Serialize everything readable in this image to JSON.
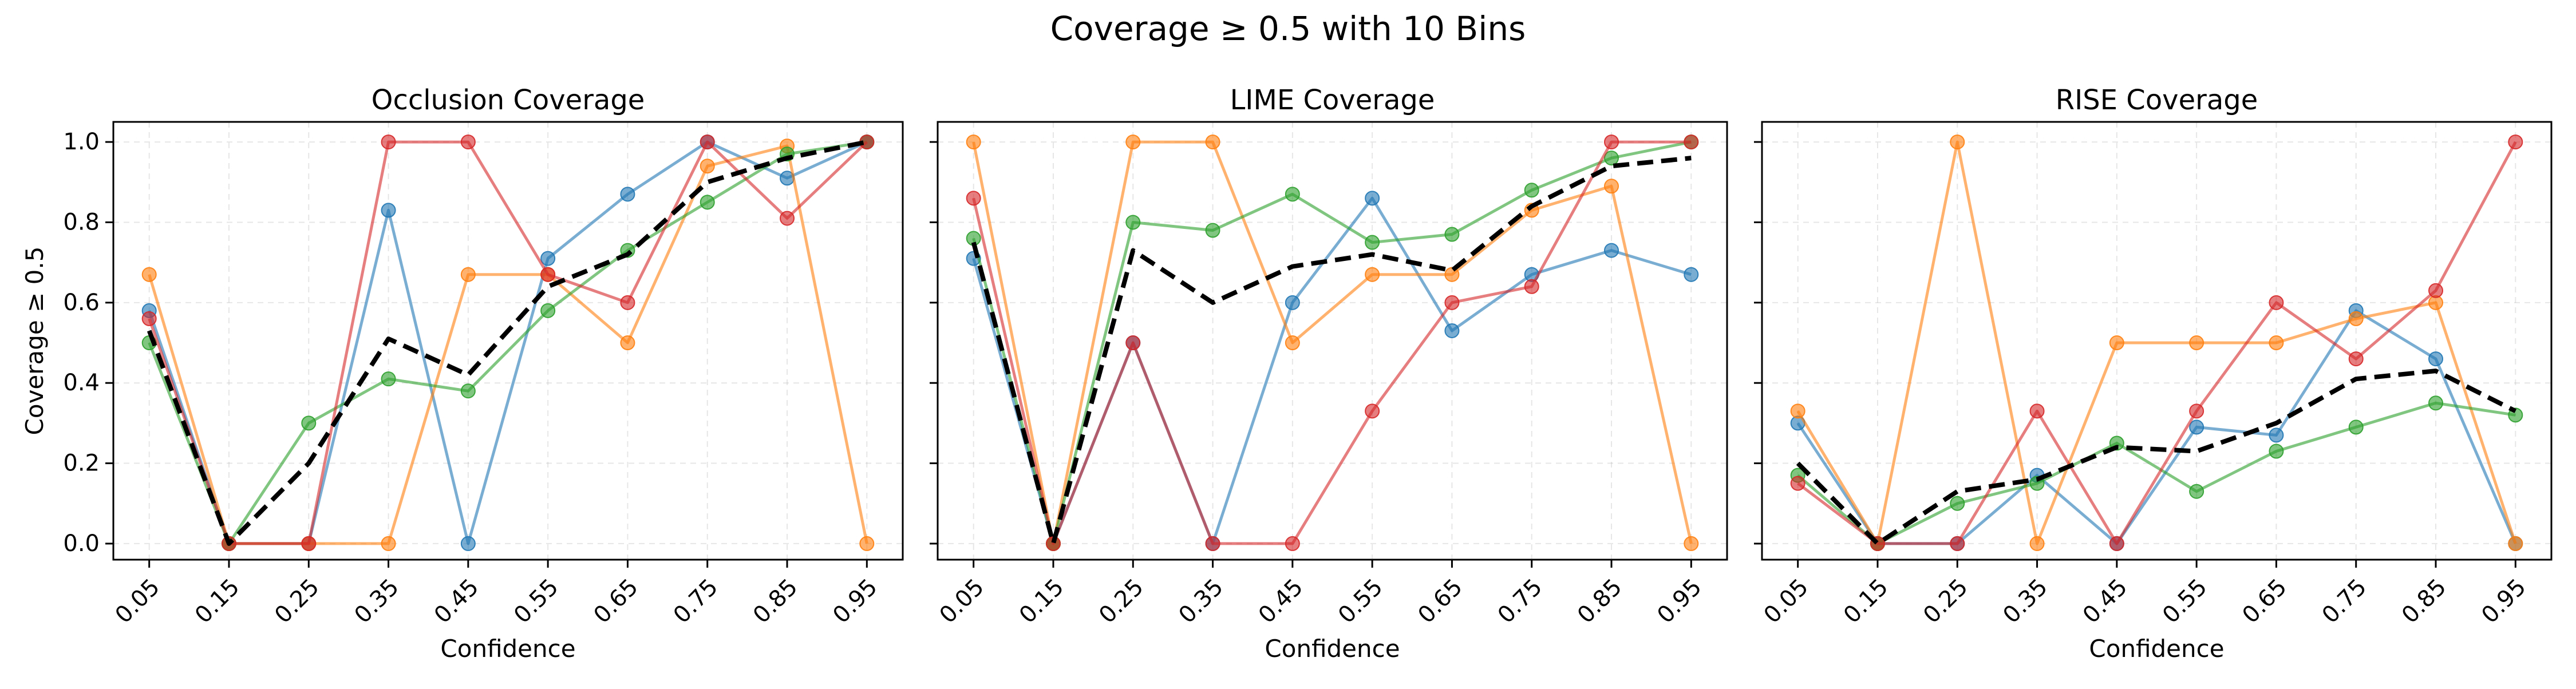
{
  "figure": {
    "suptitle": "Coverage ≥ 0.5 with 10 Bins"
  },
  "chart_data": [
    {
      "type": "line",
      "title": "Occlusion Coverage",
      "xlabel": "Confidence",
      "ylabel": "Coverage ≥ 0.5",
      "ylim": [
        -0.04,
        1.05
      ],
      "grid": true,
      "categories": [
        "0.05",
        "0.15",
        "0.25",
        "0.35",
        "0.45",
        "0.55",
        "0.65",
        "0.75",
        "0.85",
        "0.95"
      ],
      "yticks": [
        "0.0",
        "0.2",
        "0.4",
        "0.6",
        "0.8",
        "1.0"
      ],
      "series": [
        {
          "color": "#1f77b4",
          "values": [
            0.58,
            0.0,
            0.0,
            0.83,
            0.0,
            0.71,
            0.87,
            1.0,
            0.91,
            1.0
          ]
        },
        {
          "color": "#ff7f0e",
          "values": [
            0.67,
            0.0,
            0.0,
            0.0,
            0.67,
            0.67,
            0.5,
            0.94,
            0.99,
            0.0
          ]
        },
        {
          "color": "#2ca02c",
          "values": [
            0.5,
            0.0,
            0.3,
            0.41,
            0.38,
            0.58,
            0.73,
            0.85,
            0.97,
            1.0
          ]
        },
        {
          "color": "#d62728",
          "values": [
            0.56,
            0.0,
            0.0,
            1.0,
            1.0,
            0.67,
            0.6,
            1.0,
            0.81,
            1.0
          ]
        },
        {
          "color": "#000000",
          "dashed": true,
          "values": [
            0.53,
            0.0,
            0.2,
            0.51,
            0.42,
            0.64,
            0.72,
            0.9,
            0.96,
            1.0
          ]
        }
      ]
    },
    {
      "type": "line",
      "title": "LIME Coverage",
      "xlabel": "Confidence",
      "ylabel": "",
      "ylim": [
        -0.04,
        1.05
      ],
      "grid": true,
      "categories": [
        "0.05",
        "0.15",
        "0.25",
        "0.35",
        "0.45",
        "0.55",
        "0.65",
        "0.75",
        "0.85",
        "0.95"
      ],
      "series": [
        {
          "color": "#1f77b4",
          "values": [
            0.71,
            0.0,
            0.5,
            0.0,
            0.6,
            0.86,
            0.53,
            0.67,
            0.73,
            0.67
          ]
        },
        {
          "color": "#ff7f0e",
          "values": [
            1.0,
            0.0,
            1.0,
            1.0,
            0.5,
            0.67,
            0.67,
            0.83,
            0.89,
            0.0
          ]
        },
        {
          "color": "#2ca02c",
          "values": [
            0.76,
            0.0,
            0.8,
            0.78,
            0.87,
            0.75,
            0.77,
            0.88,
            0.96,
            1.0
          ]
        },
        {
          "color": "#d62728",
          "values": [
            0.86,
            0.0,
            0.5,
            0.0,
            0.0,
            0.33,
            0.6,
            0.64,
            1.0,
            1.0
          ]
        },
        {
          "color": "#000000",
          "dashed": true,
          "values": [
            0.75,
            0.0,
            0.73,
            0.6,
            0.69,
            0.72,
            0.68,
            0.84,
            0.94,
            0.96
          ]
        }
      ]
    },
    {
      "type": "line",
      "title": "RISE Coverage",
      "xlabel": "Confidence",
      "ylabel": "",
      "ylim": [
        -0.04,
        1.05
      ],
      "grid": true,
      "categories": [
        "0.05",
        "0.15",
        "0.25",
        "0.35",
        "0.45",
        "0.55",
        "0.65",
        "0.75",
        "0.85",
        "0.95"
      ],
      "series": [
        {
          "color": "#1f77b4",
          "values": [
            0.3,
            0.0,
            0.0,
            0.17,
            0.0,
            0.29,
            0.27,
            0.58,
            0.46,
            0.0
          ]
        },
        {
          "color": "#ff7f0e",
          "values": [
            0.33,
            0.0,
            1.0,
            0.0,
            0.5,
            0.5,
            0.5,
            0.56,
            0.6,
            0.0
          ]
        },
        {
          "color": "#2ca02c",
          "values": [
            0.17,
            0.0,
            0.1,
            0.15,
            0.25,
            0.13,
            0.23,
            0.29,
            0.35,
            0.32
          ]
        },
        {
          "color": "#d62728",
          "values": [
            0.15,
            0.0,
            0.0,
            0.33,
            0.0,
            0.33,
            0.6,
            0.46,
            0.63,
            1.0
          ]
        },
        {
          "color": "#000000",
          "dashed": true,
          "values": [
            0.2,
            0.0,
            0.13,
            0.16,
            0.24,
            0.23,
            0.3,
            0.41,
            0.43,
            0.33
          ]
        }
      ]
    }
  ]
}
